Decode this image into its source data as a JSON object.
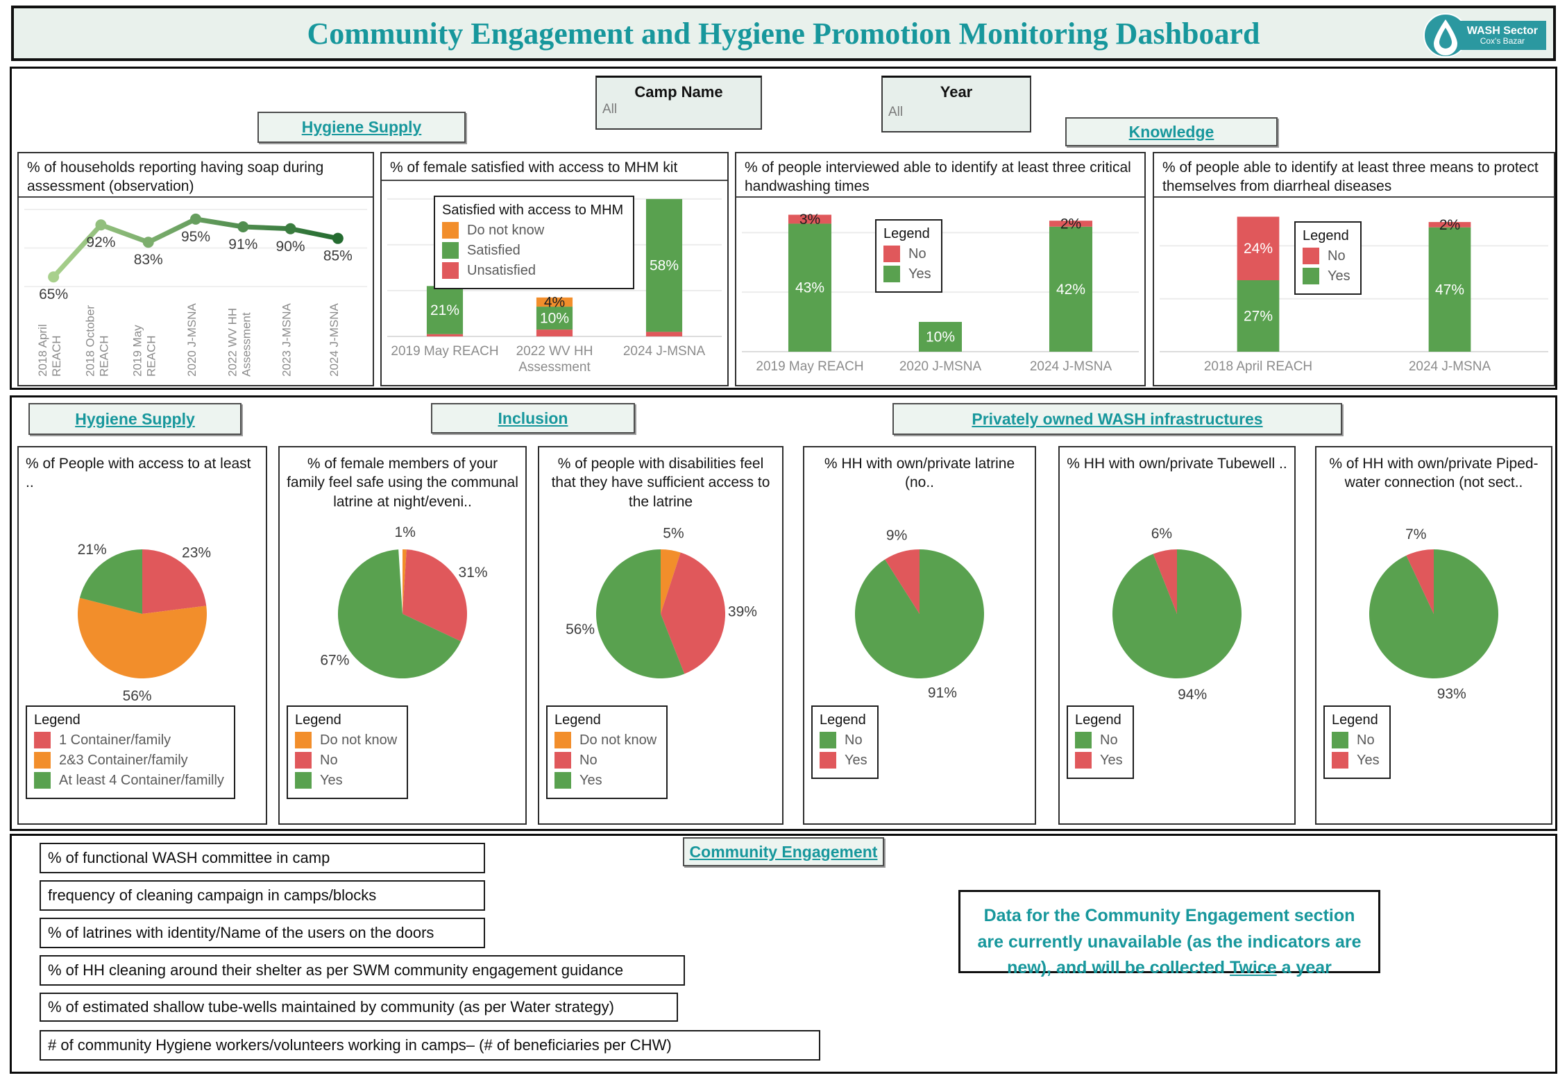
{
  "app": {
    "title": "Community Engagement and Hygiene Promotion Monitoring Dashboard"
  },
  "logo": {
    "org": "WASH Sector",
    "sub": "Cox's Bazar"
  },
  "filters": {
    "camp_name": {
      "label": "Camp Name",
      "value": "All"
    },
    "year": {
      "label": "Year",
      "value": "All"
    }
  },
  "nav": {
    "hygiene_supply_top": "Hygiene Supply",
    "knowledge": "Knowledge",
    "hygiene_supply_mid": "Hygiene Supply",
    "inclusion": "Inclusion",
    "private_wash": "Privately owned WASH infrastructures",
    "community_engagement": "Community Engagement"
  },
  "palette": {
    "green": "#59a14f",
    "red": "#e0585b",
    "orange": "#f28e2b",
    "teal": "#17979c"
  },
  "chart_data": [
    {
      "id": "soap-line",
      "type": "line",
      "title": "% of households reporting having soap during assessment (observation)",
      "categories": [
        [
          "2018 April",
          "REACH"
        ],
        [
          "2018 October",
          "REACH"
        ],
        [
          "2019 May",
          "REACH"
        ],
        [
          "2020 J-MSNA"
        ],
        [
          "2022 WV HH",
          "Assessment"
        ],
        [
          "2023 J-MSNA"
        ],
        [
          "2024 J-MSNA"
        ]
      ],
      "values": [
        65,
        92,
        83,
        95,
        91,
        90,
        85
      ],
      "unit": "%",
      "ylim": [
        55,
        100
      ],
      "grid": true,
      "line_color": [
        "#a8d08c",
        "#246b30"
      ]
    },
    {
      "id": "mhm-kit",
      "type": "stacked_bar",
      "title": "% of female satisfied with access to MHM kit",
      "categories": [
        [
          "2019 May REACH"
        ],
        [
          "2022 WV HH",
          "Assessment"
        ],
        [
          "2024 J-MSNA"
        ]
      ],
      "series": [
        {
          "name": "Unsatisfied",
          "color": "red",
          "values": [
            1,
            3,
            2
          ]
        },
        {
          "name": "Satisfied",
          "color": "green",
          "values": [
            21,
            10,
            58
          ]
        },
        {
          "name": "Do not know",
          "color": "orange",
          "values": [
            0,
            4,
            0
          ]
        }
      ],
      "stack_order": "bottom-to-top",
      "unit": "%",
      "ylim": [
        0,
        63
      ],
      "grid_step": 20,
      "legend": {
        "title": "Satisfied with access to MHM",
        "items": [
          {
            "label": "Do not know",
            "color": "orange"
          },
          {
            "label": "Satisfied",
            "color": "green"
          },
          {
            "label": "Unsatisfied",
            "color": "red"
          }
        ]
      }
    },
    {
      "id": "handwashing-times",
      "type": "stacked_bar",
      "title": "% of people interviewed able to identify at least three critical handwashing times",
      "categories": [
        [
          "2019 May REACH"
        ],
        [
          "2020 J-MSNA"
        ],
        [
          "2024 J-MSNA"
        ]
      ],
      "series": [
        {
          "name": "Yes",
          "color": "green",
          "values": [
            43,
            10,
            42
          ]
        },
        {
          "name": "No",
          "color": "red",
          "values": [
            3,
            0,
            2
          ]
        }
      ],
      "stack_order": "bottom-to-top",
      "unit": "%",
      "ylim": [
        0,
        48
      ],
      "grid_step": 20,
      "legend": {
        "title": "Legend",
        "items": [
          {
            "label": "No",
            "color": "red"
          },
          {
            "label": "Yes",
            "color": "green"
          }
        ]
      }
    },
    {
      "id": "diarrheal-protection",
      "type": "stacked_bar",
      "title": "% of people able to identify at least three means to protect themselves from diarrheal diseases",
      "categories": [
        [
          "2018 April REACH"
        ],
        [
          "2024 J-MSNA"
        ]
      ],
      "series": [
        {
          "name": "Yes",
          "color": "green",
          "values": [
            27,
            47
          ]
        },
        {
          "name": "No",
          "color": "red",
          "values": [
            24,
            2
          ]
        }
      ],
      "stack_order": "bottom-to-top",
      "unit": "%",
      "ylim": [
        0,
        54
      ],
      "grid_step": 20,
      "legend": {
        "title": "Legend",
        "items": [
          {
            "label": "No",
            "color": "red"
          },
          {
            "label": "Yes",
            "color": "green"
          }
        ]
      }
    },
    {
      "id": "water-containers",
      "type": "pie",
      "title": "% of People with access to at least ..",
      "slices": [
        {
          "label": "1 Container/family",
          "color": "red",
          "value": 23
        },
        {
          "label": "2&3 Container/family",
          "color": "orange",
          "value": 56
        },
        {
          "label": "At least 4 Container/familly",
          "color": "green",
          "value": 21
        }
      ],
      "unit": "%",
      "legend": {
        "title": "Legend",
        "items": [
          {
            "label": "1 Container/family",
            "color": "red"
          },
          {
            "label": "2&3 Container/family",
            "color": "orange"
          },
          {
            "label": "At least 4 Container/familly",
            "color": "green"
          }
        ]
      }
    },
    {
      "id": "female-latrine-safety",
      "type": "pie",
      "title": "% of female members of your family feel safe using the communal latrine at night/eveni..",
      "slices": [
        {
          "label": "Do not know",
          "color": "orange",
          "value": 1
        },
        {
          "label": "No",
          "color": "red",
          "value": 31
        },
        {
          "label": "Yes",
          "color": "green",
          "value": 67
        }
      ],
      "unit": "%",
      "legend": {
        "title": "Legend",
        "items": [
          {
            "label": "Do not know",
            "color": "orange"
          },
          {
            "label": "No",
            "color": "red"
          },
          {
            "label": "Yes",
            "color": "green"
          }
        ]
      }
    },
    {
      "id": "disability-latrine-access",
      "type": "pie",
      "title": "% of people with disabilities feel that they have sufficient access to the latrine",
      "slices": [
        {
          "label": "Do not know",
          "color": "orange",
          "value": 5
        },
        {
          "label": "No",
          "color": "red",
          "value": 39
        },
        {
          "label": "Yes",
          "color": "green",
          "value": 56
        }
      ],
      "unit": "%",
      "legend": {
        "title": "Legend",
        "items": [
          {
            "label": "Do not know",
            "color": "orange"
          },
          {
            "label": "No",
            "color": "red"
          },
          {
            "label": "Yes",
            "color": "green"
          }
        ]
      }
    },
    {
      "id": "private-latrine",
      "type": "pie",
      "title": "% HH with own/private latrine (no..",
      "slices": [
        {
          "label": "No",
          "color": "green",
          "value": 91
        },
        {
          "label": "Yes",
          "color": "red",
          "value": 9
        }
      ],
      "unit": "%",
      "legend": {
        "title": "Legend",
        "items": [
          {
            "label": "No",
            "color": "green"
          },
          {
            "label": "Yes",
            "color": "red"
          }
        ]
      }
    },
    {
      "id": "private-tubewell",
      "type": "pie",
      "title": "% HH with own/private Tubewell ..",
      "slices": [
        {
          "label": "No",
          "color": "green",
          "value": 94
        },
        {
          "label": "Yes",
          "color": "red",
          "value": 6
        }
      ],
      "unit": "%",
      "legend": {
        "title": "Legend",
        "items": [
          {
            "label": "No",
            "color": "green"
          },
          {
            "label": "Yes",
            "color": "red"
          }
        ]
      }
    },
    {
      "id": "private-piped-water",
      "type": "pie",
      "title": "% of HH with own/private Piped-water connection (not sect..",
      "slices": [
        {
          "label": "No",
          "color": "green",
          "value": 93
        },
        {
          "label": "Yes",
          "color": "red",
          "value": 7
        }
      ],
      "unit": "%",
      "legend": {
        "title": "Legend",
        "items": [
          {
            "label": "No",
            "color": "green"
          },
          {
            "label": "Yes",
            "color": "red"
          }
        ]
      }
    }
  ],
  "indicators": [
    "% of functional WASH committee in camp",
    "frequency of cleaning campaign in camps/blocks",
    "% of latrines with identity/Name of the users on the doors",
    "% of HH cleaning around their shelter as per SWM community engagement guidance",
    "% of estimated shallow tube-wells maintained by community (as per Water strategy)",
    "# of community Hygiene workers/volunteers working in camps– (# of beneficiaries per CHW)"
  ],
  "note": {
    "before": "Data for the Community Engagement section are currently unavailable (as the indicators are new), and will be collected ",
    "emphasis": "Twice",
    "after": " a year"
  }
}
